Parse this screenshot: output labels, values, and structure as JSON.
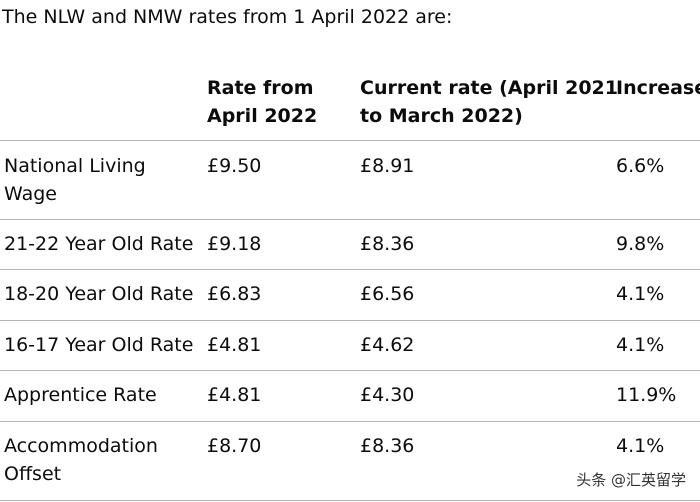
{
  "intro": "The NLW and NMW rates from 1 April 2022 are:",
  "table": {
    "headers": [
      {
        "line1": "",
        "line2": ""
      },
      {
        "line1": "Rate from",
        "line2": "April 2022"
      },
      {
        "line1": "Current rate (April 2021",
        "line2": "to March 2022)"
      },
      {
        "line1": "Increase",
        "line2": ""
      }
    ],
    "rows": [
      {
        "label": [
          "National Living",
          "Wage"
        ],
        "new_rate": "£9.50",
        "current_rate": "£8.91",
        "increase": "6.6%"
      },
      {
        "label": [
          "21-22 Year Old Rate"
        ],
        "new_rate": "£9.18",
        "current_rate": "£8.36",
        "increase": "9.8%"
      },
      {
        "label": [
          "18-20 Year Old Rate"
        ],
        "new_rate": "£6.83",
        "current_rate": "£6.56",
        "increase": "4.1%"
      },
      {
        "label": [
          "16-17 Year Old Rate"
        ],
        "new_rate": "£4.81",
        "current_rate": "£4.62",
        "increase": "4.1%"
      },
      {
        "label": [
          "Apprentice Rate"
        ],
        "new_rate": "£4.81",
        "current_rate": "£4.30",
        "increase": "11.9%"
      },
      {
        "label": [
          "Accommodation",
          "Offset"
        ],
        "new_rate": "£8.70",
        "current_rate": "£8.36",
        "increase": "4.1%"
      }
    ]
  },
  "watermark": "头条 @汇英留学"
}
